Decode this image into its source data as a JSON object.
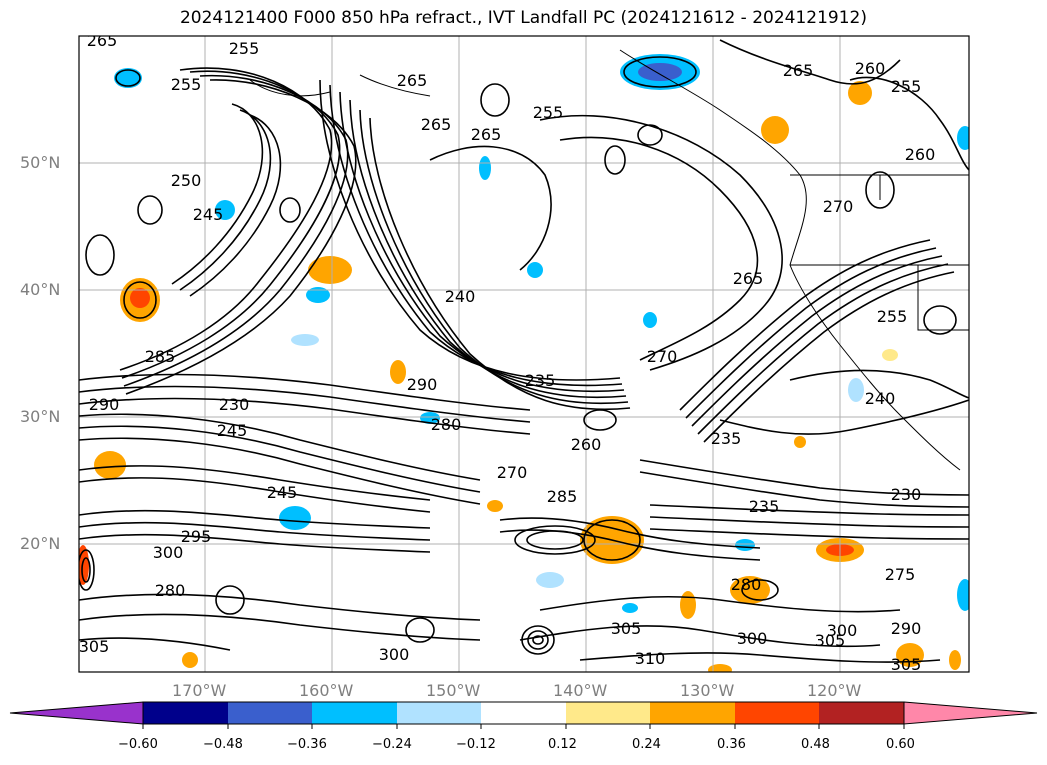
{
  "title": "2024121400 F000 850 hPa refract., IVT Landfall PC (2024121612 - 2024121912)",
  "lat_labels": [
    "50°N",
    "40°N",
    "30°N",
    "20°N"
  ],
  "lon_labels": [
    "170°W",
    "160°W",
    "150°W",
    "140°W",
    "130°W",
    "120°W"
  ],
  "colorbar": {
    "ticks": [
      "−0.60",
      "−0.48",
      "−0.36",
      "−0.24",
      "−0.12",
      "0.12",
      "0.24",
      "0.36",
      "0.48",
      "0.60"
    ],
    "colors": [
      "#9932cc",
      "#00008b",
      "#3a5fcd",
      "#00bfff",
      "#b0e2ff",
      "#ffffff",
      "#ffe98a",
      "#ffa500",
      "#ff4500",
      "#b22222",
      "#ff87a9"
    ]
  },
  "contour_labels": [
    "265",
    "255",
    "255",
    "265",
    "265",
    "265",
    "255",
    "250",
    "245",
    "265",
    "260",
    "255",
    "260",
    "270",
    "265",
    "255",
    "240",
    "240",
    "270",
    "290",
    "235",
    "285",
    "280",
    "245",
    "230",
    "235",
    "260",
    "270",
    "285",
    "245",
    "295",
    "300",
    "235",
    "230",
    "290",
    "280",
    "275",
    "305",
    "300",
    "305",
    "310",
    "300",
    "305",
    "290",
    "305",
    "300",
    "280"
  ]
}
